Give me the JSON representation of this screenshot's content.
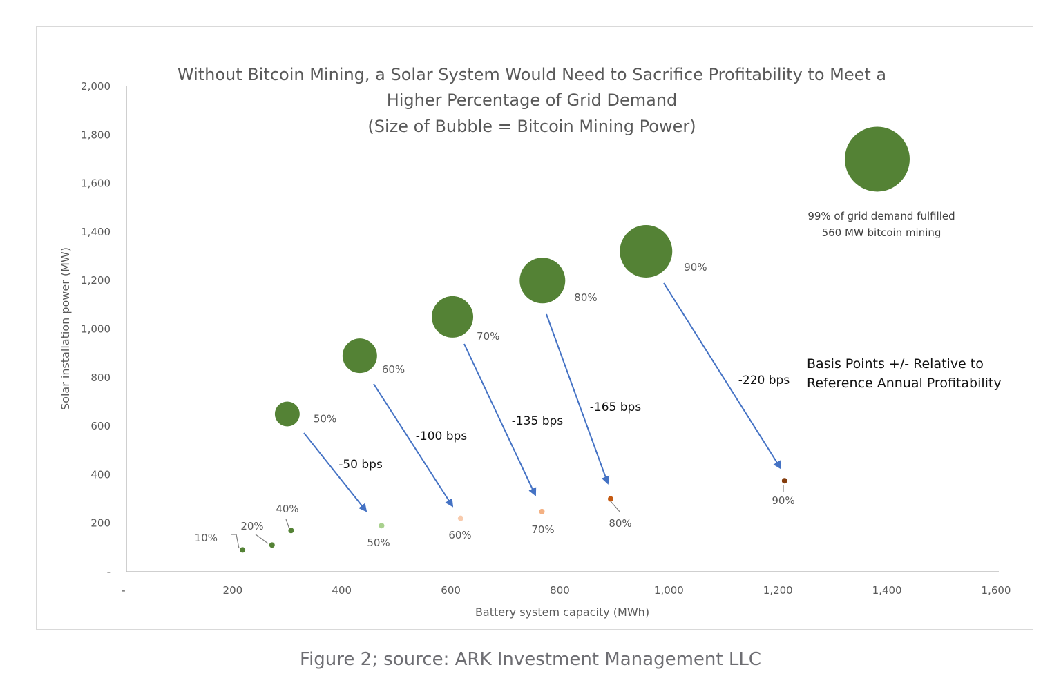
{
  "chart_data": {
    "type": "scatter",
    "title": [
      "Without Bitcoin Mining, a Solar System Would Need to Sacrifice Profitability to Meet a",
      "Higher Percentage of Grid Demand",
      "(Size of Bubble = Bitcoin Mining Power)"
    ],
    "xlabel": "Battery system capacity (MWh)",
    "ylabel": "Solar installation power  (MW)",
    "xlim": [
      0,
      1600
    ],
    "ylim": [
      0,
      2000
    ],
    "x_ticks": [
      "-",
      "200",
      "400",
      "600",
      "800",
      "1,000",
      "1,200",
      "1,400",
      "1,600"
    ],
    "y_ticks": [
      "-",
      "200",
      "400",
      "600",
      "800",
      "1,000",
      "1,200",
      "1,400",
      "1,600",
      "1,800",
      "2,000"
    ],
    "bubble_color": "#548235",
    "with_mining": [
      {
        "label": "50%",
        "x": 295,
        "y": 650
      },
      {
        "label": "60%",
        "x": 428,
        "y": 890
      },
      {
        "label": "70%",
        "x": 598,
        "y": 1050
      },
      {
        "label": "80%",
        "x": 763,
        "y": 1200
      },
      {
        "label": "90%",
        "x": 953,
        "y": 1320
      }
    ],
    "without_mining": [
      {
        "label": "10%",
        "x": 213,
        "y": 90,
        "color": "#548235"
      },
      {
        "label": "20%",
        "x": 267,
        "y": 110,
        "color": "#548235"
      },
      {
        "label": "40%",
        "x": 302,
        "y": 170,
        "color": "#548235"
      },
      {
        "label": "50%",
        "x": 468,
        "y": 190,
        "color": "#a9d18e"
      },
      {
        "label": "60%",
        "x": 613,
        "y": 220,
        "color": "#f8cbad"
      },
      {
        "label": "70%",
        "x": 762,
        "y": 248,
        "color": "#f4b183"
      },
      {
        "label": "80%",
        "x": 888,
        "y": 300,
        "color": "#c55a11"
      },
      {
        "label": "90%",
        "x": 1207,
        "y": 375,
        "color": "#843c0c"
      }
    ],
    "profitability_change": [
      "-50 bps",
      "-100 bps",
      "-135 bps",
      "-165 bps",
      "-220 bps"
    ],
    "arrow_color": "#4472c4",
    "legend": {
      "bubble_x": 1377,
      "bubble_y": 1700,
      "lines": [
        "99% of grid demand fulfilled",
        "560 MW bitcoin mining"
      ]
    },
    "note": [
      "Basis Points +/- Relative to",
      "Reference  Annual Profitability"
    ]
  },
  "caption": "Figure 2; source: ARK Investment Management LLC"
}
